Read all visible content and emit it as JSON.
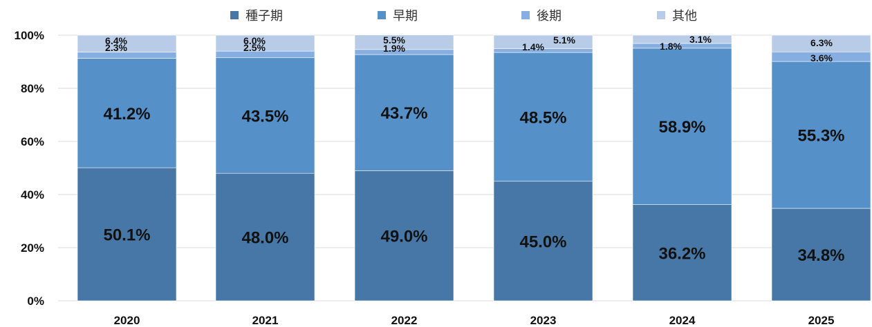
{
  "chart_data": {
    "type": "bar",
    "stacked": true,
    "categories": [
      "2020",
      "2021",
      "2022",
      "2023",
      "2024",
      "2025"
    ],
    "series": [
      {
        "name": "種子期",
        "color": "#4677a6",
        "values": [
          50.1,
          48.0,
          49.0,
          45.0,
          36.2,
          34.8
        ]
      },
      {
        "name": "早期",
        "color": "#5590c8",
        "values": [
          41.2,
          43.5,
          43.7,
          48.5,
          58.9,
          55.3
        ]
      },
      {
        "name": "後期",
        "color": "#86aee0",
        "values": [
          2.3,
          2.5,
          1.9,
          1.4,
          1.8,
          3.6
        ]
      },
      {
        "name": "其他",
        "color": "#b8cce8",
        "values": [
          6.4,
          6.0,
          5.5,
          5.1,
          3.1,
          6.3
        ]
      }
    ],
    "data_labels": [
      [
        "50.1%",
        "41.2%",
        "2.3%",
        "6.4%"
      ],
      [
        "48.0%",
        "43.5%",
        "2.5%",
        "6.0%"
      ],
      [
        "49.0%",
        "43.7%",
        "1.9%",
        "5.5%"
      ],
      [
        "45.0%",
        "48.5%",
        "1.4%",
        "5.1%"
      ],
      [
        "36.2%",
        "58.9%",
        "1.8%",
        "3.1%"
      ],
      [
        "34.8%",
        "55.3%",
        "3.6%",
        "6.3%"
      ]
    ],
    "ylim": [
      0,
      100
    ],
    "yticks": [
      "0%",
      "20%",
      "40%",
      "60%",
      "80%",
      "100%"
    ],
    "legend_position": "top",
    "grid": true,
    "title": "",
    "xlabel": "",
    "ylabel": ""
  }
}
